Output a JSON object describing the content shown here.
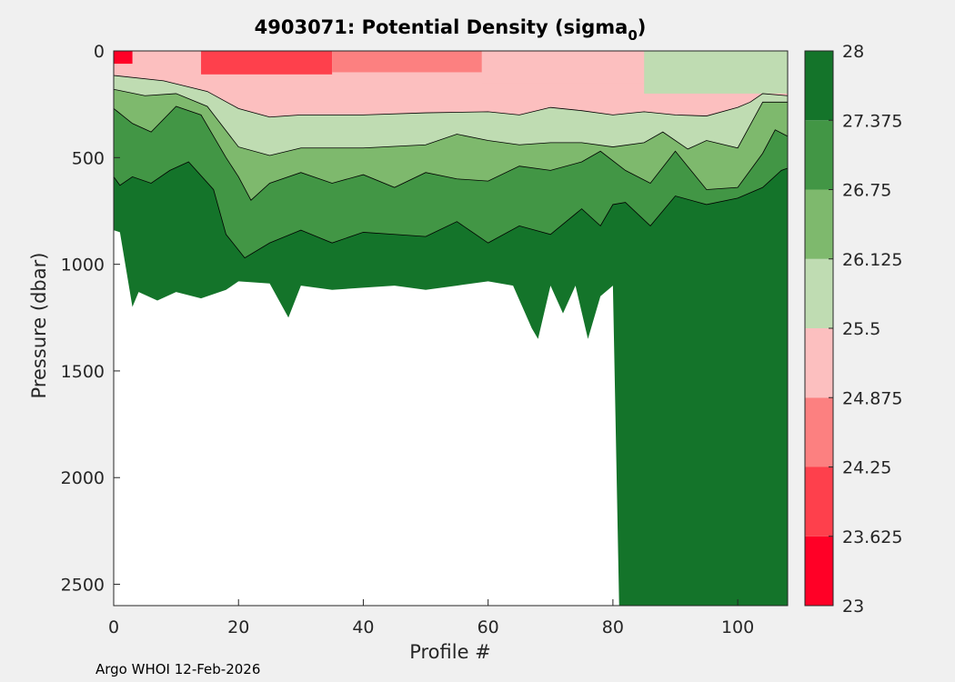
{
  "chart_data": {
    "type": "heatmap",
    "title_main": "4903071: Potential Density (sigma",
    "title_sub": "0",
    "title_close": ")",
    "xlabel": "Profile #",
    "ylabel": "Pressure (dbar)",
    "xlim": [
      0,
      108
    ],
    "ylim": [
      0,
      2600
    ],
    "y_reversed": true,
    "xticks": [
      0,
      20,
      40,
      60,
      80,
      100
    ],
    "yticks": [
      0,
      500,
      1000,
      1500,
      2000,
      2500
    ],
    "colorbar": {
      "ticks": [
        "23",
        "23.625",
        "24.25",
        "24.875",
        "25.5",
        "26.125",
        "26.75",
        "27.375",
        "28"
      ],
      "levels": [
        {
          "min": 23.0,
          "max": 23.625,
          "color": "#ff0026"
        },
        {
          "min": 23.625,
          "max": 24.25,
          "color": "#fe404c"
        },
        {
          "min": 24.25,
          "max": 24.875,
          "color": "#fc8080"
        },
        {
          "min": 24.875,
          "max": 25.5,
          "color": "#fcbfbf"
        },
        {
          "min": 25.5,
          "max": 26.125,
          "color": "#bfdcb2"
        },
        {
          "min": 26.125,
          "max": 26.75,
          "color": "#7eb96d"
        },
        {
          "min": 26.75,
          "max": 27.375,
          "color": "#429645"
        },
        {
          "min": 27.375,
          "max": 28.0,
          "color": "#14742a"
        }
      ]
    },
    "no_data_color": "#ffffff",
    "profile_max_depth": {
      "x": [
        0,
        1,
        3,
        4,
        7,
        10,
        14,
        18,
        20,
        25,
        28,
        30,
        35,
        40,
        45,
        50,
        55,
        60,
        64,
        67,
        68,
        70,
        72,
        74,
        76,
        78,
        80,
        81,
        108
      ],
      "pressure": [
        840,
        850,
        1200,
        1130,
        1170,
        1130,
        1160,
        1120,
        1080,
        1090,
        1250,
        1100,
        1120,
        1110,
        1100,
        1120,
        1100,
        1080,
        1100,
        1300,
        1350,
        1100,
        1230,
        1100,
        1350,
        1150,
        1100,
        2600,
        2600
      ]
    },
    "isopycnals": [
      {
        "boundary": "25.5 / 26.125",
        "x": [
          0,
          8,
          15,
          20,
          25,
          30,
          40,
          50,
          60,
          65,
          70,
          75,
          80,
          85,
          90,
          95,
          100,
          102,
          104,
          108
        ],
        "pressure": [
          115,
          140,
          190,
          270,
          310,
          300,
          300,
          290,
          285,
          300,
          265,
          280,
          300,
          285,
          300,
          305,
          265,
          240,
          200,
          210
        ]
      },
      {
        "boundary": "26.125 / 26.75",
        "x": [
          0,
          5,
          10,
          15,
          20,
          25,
          30,
          40,
          50,
          55,
          60,
          65,
          70,
          75,
          80,
          85,
          88,
          92,
          95,
          100,
          104,
          108
        ],
        "pressure": [
          180,
          210,
          200,
          260,
          450,
          490,
          455,
          455,
          440,
          390,
          420,
          440,
          430,
          430,
          450,
          430,
          380,
          460,
          420,
          455,
          240,
          240
        ]
      },
      {
        "boundary": "26.75 / 27.375",
        "x": [
          0,
          3,
          6,
          10,
          14,
          18,
          20,
          22,
          25,
          30,
          35,
          40,
          45,
          50,
          55,
          60,
          65,
          70,
          75,
          78,
          82,
          86,
          90,
          95,
          100,
          104,
          106,
          108
        ],
        "pressure": [
          270,
          340,
          380,
          260,
          300,
          500,
          590,
          700,
          620,
          570,
          620,
          580,
          640,
          570,
          600,
          610,
          540,
          560,
          520,
          470,
          560,
          620,
          470,
          650,
          640,
          480,
          370,
          400
        ]
      },
      {
        "boundary": "27.375 / 28",
        "x": [
          0,
          1,
          3,
          6,
          9,
          12,
          16,
          18,
          21,
          25,
          30,
          35,
          40,
          45,
          50,
          55,
          60,
          65,
          70,
          75,
          78,
          80,
          82,
          86,
          90,
          95,
          100,
          104,
          107,
          108
        ],
        "pressure": [
          590,
          630,
          590,
          620,
          560,
          520,
          650,
          860,
          970,
          900,
          840,
          900,
          850,
          860,
          870,
          800,
          900,
          820,
          860,
          740,
          820,
          720,
          710,
          820,
          680,
          720,
          690,
          640,
          560,
          550
        ]
      }
    ],
    "surface_bands": [
      {
        "level": "23.625-24.25",
        "x_start": 14,
        "x_end": 35,
        "pressure_top": 0,
        "pressure_bottom": 110
      },
      {
        "level": "24.25-24.875",
        "x_start": 35,
        "x_end": 59,
        "pressure_top": 0,
        "pressure_bottom": 100
      },
      {
        "level": "24.875-25.5",
        "x_start": 59,
        "x_end": 85,
        "pressure_top": 0,
        "pressure_bottom": 150
      },
      {
        "level": "23-23.625",
        "x_start": 0,
        "x_end": 3,
        "pressure_top": 0,
        "pressure_bottom": 60
      }
    ],
    "footer": "Argo WHOI 12-Feb-2026"
  }
}
